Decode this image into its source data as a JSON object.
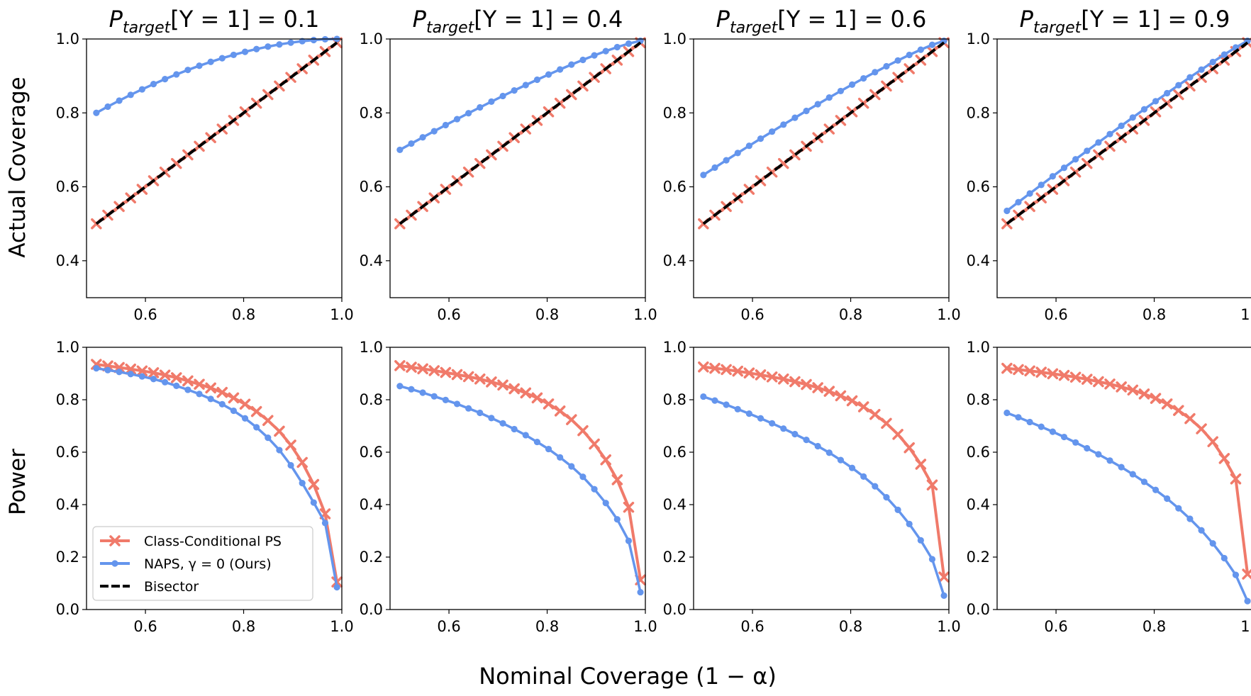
{
  "figure": {
    "row_labels": [
      "Actual Coverage",
      "Power"
    ],
    "xlabel": "Nominal Coverage (1 − α)",
    "titles": [
      {
        "text": "P",
        "sub": "target",
        "rest": "[Y = 1] = 0.1"
      },
      {
        "text": "P",
        "sub": "target",
        "rest": "[Y = 1] = 0.4"
      },
      {
        "text": "P",
        "sub": "target",
        "rest": "[Y = 1] = 0.6"
      },
      {
        "text": "P",
        "sub": "target",
        "rest": "[Y = 1] = 0.9"
      }
    ]
  },
  "legend": {
    "items": [
      {
        "label": "Class-Conditional PS",
        "color": "#f07a6a",
        "marker": "x"
      },
      {
        "label": "NAPS, γ = 0 (Ours)",
        "color": "#6495ed",
        "marker": "o"
      },
      {
        "label": "Bisector",
        "color": "#000000",
        "marker": "dash"
      }
    ]
  },
  "colors": {
    "cc": "#f07a6a",
    "naps": "#6495ed",
    "bisector": "#000000"
  },
  "chart_data": [
    {
      "type": "line",
      "row": "coverage",
      "p_target": 0.1,
      "xlim": [
        0.48,
        1.0
      ],
      "ylim": [
        0.3,
        1.0
      ],
      "x_ticks": [
        "0.6",
        "0.8",
        "1.0"
      ],
      "y_ticks": [
        "0.4",
        "0.6",
        "0.8",
        "1.0"
      ],
      "series": [
        {
          "name": "Class-Conditional PS",
          "key": "cc",
          "start": 0.5,
          "end": 0.99
        },
        {
          "name": "NAPS, γ = 0 (Ours)",
          "key": "naps",
          "start": 0.8,
          "end": 1.0,
          "shape": 0.55
        },
        {
          "name": "Bisector",
          "key": "bisector"
        }
      ]
    },
    {
      "type": "line",
      "row": "coverage",
      "p_target": 0.4,
      "xlim": [
        0.48,
        1.0
      ],
      "ylim": [
        0.3,
        1.0
      ],
      "x_ticks": [
        "0.6",
        "0.8",
        "1.0"
      ],
      "y_ticks": [
        "0.4",
        "0.6",
        "0.8",
        "1.0"
      ],
      "series": [
        {
          "name": "Class-Conditional PS",
          "key": "cc",
          "start": 0.5,
          "end": 0.99
        },
        {
          "name": "NAPS, γ = 0 (Ours)",
          "key": "naps",
          "start": 0.7,
          "end": 0.995,
          "shape": 0.82
        },
        {
          "name": "Bisector",
          "key": "bisector"
        }
      ]
    },
    {
      "type": "line",
      "row": "coverage",
      "p_target": 0.6,
      "xlim": [
        0.48,
        1.0
      ],
      "ylim": [
        0.3,
        1.0
      ],
      "x_ticks": [
        "0.6",
        "0.8",
        "1.0"
      ],
      "y_ticks": [
        "0.4",
        "0.6",
        "0.8",
        "1.0"
      ],
      "series": [
        {
          "name": "Class-Conditional PS",
          "key": "cc",
          "start": 0.5,
          "end": 0.99
        },
        {
          "name": "NAPS, γ = 0 (Ours)",
          "key": "naps",
          "start": 0.632,
          "end": 0.995,
          "shape": 0.86
        },
        {
          "name": "Bisector",
          "key": "bisector"
        }
      ]
    },
    {
      "type": "line",
      "row": "coverage",
      "p_target": 0.9,
      "xlim": [
        0.48,
        1.0
      ],
      "ylim": [
        0.3,
        1.0
      ],
      "x_ticks": [
        "0.6",
        "0.8",
        "1.0"
      ],
      "y_ticks": [
        "0.4",
        "0.6",
        "0.8",
        "1.0"
      ],
      "series": [
        {
          "name": "Class-Conditional PS",
          "key": "cc",
          "start": 0.5,
          "end": 0.99
        },
        {
          "name": "NAPS, γ = 0 (Ours)",
          "key": "naps",
          "start": 0.535,
          "end": 0.995,
          "shape": 0.93
        },
        {
          "name": "Bisector",
          "key": "bisector"
        }
      ]
    },
    {
      "type": "line",
      "row": "power",
      "p_target": 0.1,
      "xlim": [
        0.48,
        1.0
      ],
      "ylim": [
        0.0,
        1.0
      ],
      "x_ticks": [
        "0.6",
        "0.8",
        "1.0"
      ],
      "y_ticks": [
        "0.0",
        "0.2",
        "0.4",
        "0.6",
        "0.8",
        "1.0"
      ],
      "series": [
        {
          "name": "Class-Conditional PS",
          "key": "cc",
          "y": [
            0.935,
            0.929,
            0.923,
            0.917,
            0.91,
            0.903,
            0.894,
            0.884,
            0.872,
            0.859,
            0.845,
            0.828,
            0.807,
            0.783,
            0.755,
            0.721,
            0.68,
            0.627,
            0.561,
            0.477,
            0.365,
            0.105
          ]
        },
        {
          "name": "NAPS, γ = 0 (Ours)",
          "key": "naps",
          "y": [
            0.92,
            0.913,
            0.906,
            0.898,
            0.889,
            0.879,
            0.867,
            0.853,
            0.838,
            0.822,
            0.803,
            0.783,
            0.758,
            0.729,
            0.695,
            0.655,
            0.608,
            0.55,
            0.482,
            0.408,
            0.33,
            0.085
          ]
        }
      ]
    },
    {
      "type": "line",
      "row": "power",
      "p_target": 0.4,
      "xlim": [
        0.48,
        1.0
      ],
      "ylim": [
        0.0,
        1.0
      ],
      "x_ticks": [
        "0.6",
        "0.8",
        "1.0"
      ],
      "y_ticks": [
        "0.0",
        "0.2",
        "0.4",
        "0.6",
        "0.8",
        "1.0"
      ],
      "series": [
        {
          "name": "Class-Conditional PS",
          "key": "cc",
          "y": [
            0.93,
            0.924,
            0.918,
            0.911,
            0.904,
            0.896,
            0.888,
            0.879,
            0.868,
            0.856,
            0.842,
            0.826,
            0.807,
            0.784,
            0.757,
            0.724,
            0.682,
            0.631,
            0.571,
            0.495,
            0.39,
            0.113
          ]
        },
        {
          "name": "NAPS, γ = 0 (Ours)",
          "key": "naps",
          "y": [
            0.852,
            0.84,
            0.827,
            0.813,
            0.799,
            0.784,
            0.767,
            0.75,
            0.73,
            0.71,
            0.688,
            0.665,
            0.639,
            0.612,
            0.58,
            0.546,
            0.506,
            0.459,
            0.406,
            0.344,
            0.262,
            0.066
          ]
        }
      ]
    },
    {
      "type": "line",
      "row": "power",
      "p_target": 0.6,
      "xlim": [
        0.48,
        1.0
      ],
      "ylim": [
        0.0,
        1.0
      ],
      "x_ticks": [
        "0.6",
        "0.8",
        "1.0"
      ],
      "y_ticks": [
        "0.0",
        "0.2",
        "0.4",
        "0.6",
        "0.8",
        "1.0"
      ],
      "series": [
        {
          "name": "Class-Conditional PS",
          "key": "cc",
          "y": [
            0.925,
            0.92,
            0.915,
            0.909,
            0.902,
            0.895,
            0.887,
            0.879,
            0.869,
            0.858,
            0.846,
            0.832,
            0.815,
            0.796,
            0.773,
            0.744,
            0.71,
            0.668,
            0.617,
            0.554,
            0.475,
            0.124
          ]
        },
        {
          "name": "NAPS, γ = 0 (Ours)",
          "key": "naps",
          "y": [
            0.812,
            0.797,
            0.781,
            0.764,
            0.747,
            0.729,
            0.71,
            0.69,
            0.669,
            0.647,
            0.623,
            0.598,
            0.57,
            0.54,
            0.507,
            0.47,
            0.428,
            0.38,
            0.326,
            0.264,
            0.192,
            0.053
          ]
        }
      ]
    },
    {
      "type": "line",
      "row": "power",
      "p_target": 0.9,
      "xlim": [
        0.48,
        1.0
      ],
      "ylim": [
        0.0,
        1.0
      ],
      "x_ticks": [
        "0.6",
        "0.8",
        "1.0"
      ],
      "y_ticks": [
        "0.0",
        "0.2",
        "0.4",
        "0.6",
        "0.8",
        "1.0"
      ],
      "series": [
        {
          "name": "Class-Conditional PS",
          "key": "cc",
          "y": [
            0.92,
            0.915,
            0.91,
            0.905,
            0.899,
            0.893,
            0.886,
            0.878,
            0.869,
            0.86,
            0.849,
            0.837,
            0.822,
            0.805,
            0.784,
            0.759,
            0.728,
            0.689,
            0.64,
            0.576,
            0.498,
            0.135
          ]
        },
        {
          "name": "NAPS, γ = 0 (Ours)",
          "key": "naps",
          "y": [
            0.75,
            0.733,
            0.715,
            0.697,
            0.678,
            0.658,
            0.637,
            0.615,
            0.592,
            0.568,
            0.543,
            0.516,
            0.487,
            0.456,
            0.423,
            0.386,
            0.346,
            0.302,
            0.252,
            0.196,
            0.132,
            0.032
          ]
        }
      ]
    }
  ]
}
